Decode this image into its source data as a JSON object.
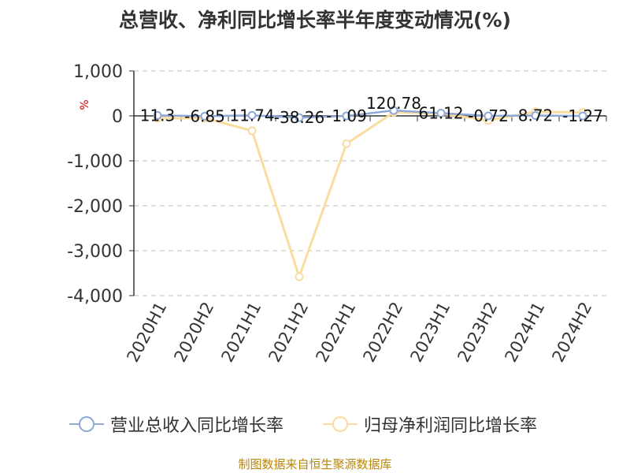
{
  "title": "总营收、净利同比增长率半年度变动情况(%)",
  "source": "制图数据来自恒生聚源数据库",
  "chart_data": {
    "type": "line",
    "ylabel": "%",
    "ylim": [
      -4000,
      1000
    ],
    "yticks": [
      1000,
      0,
      -1000,
      -2000,
      -3000,
      -4000
    ],
    "ytick_labels": [
      "1,000",
      "0",
      "-1,000",
      "-2,000",
      "-3,000",
      "-4,000"
    ],
    "grid": true,
    "legend_position": "bottom",
    "categories": [
      "2020H1",
      "2020H2",
      "2021H1",
      "2021H2",
      "2022H1",
      "2022H2",
      "2023H1",
      "2023H2",
      "2024H1",
      "2024H2"
    ],
    "series": [
      {
        "name": "营业总收入同比增长率",
        "color": "#8fa8d8",
        "values": [
          11.3,
          -6.85,
          11.74,
          -38.26,
          -1.09,
          120.78,
          61.12,
          -0.72,
          8.72,
          -1.27
        ],
        "labels": [
          "11.3",
          "-6.85",
          "11.74",
          "-38.26",
          "-1.09",
          "120.78",
          "61.12",
          "-0.72",
          "8.72",
          "-1.27"
        ]
      },
      {
        "name": "归母净利润同比增长率",
        "color": "#f9dc9e",
        "values": [
          -50,
          -50,
          -330,
          -3580,
          -620,
          80,
          50,
          -100,
          90,
          80
        ]
      }
    ]
  }
}
